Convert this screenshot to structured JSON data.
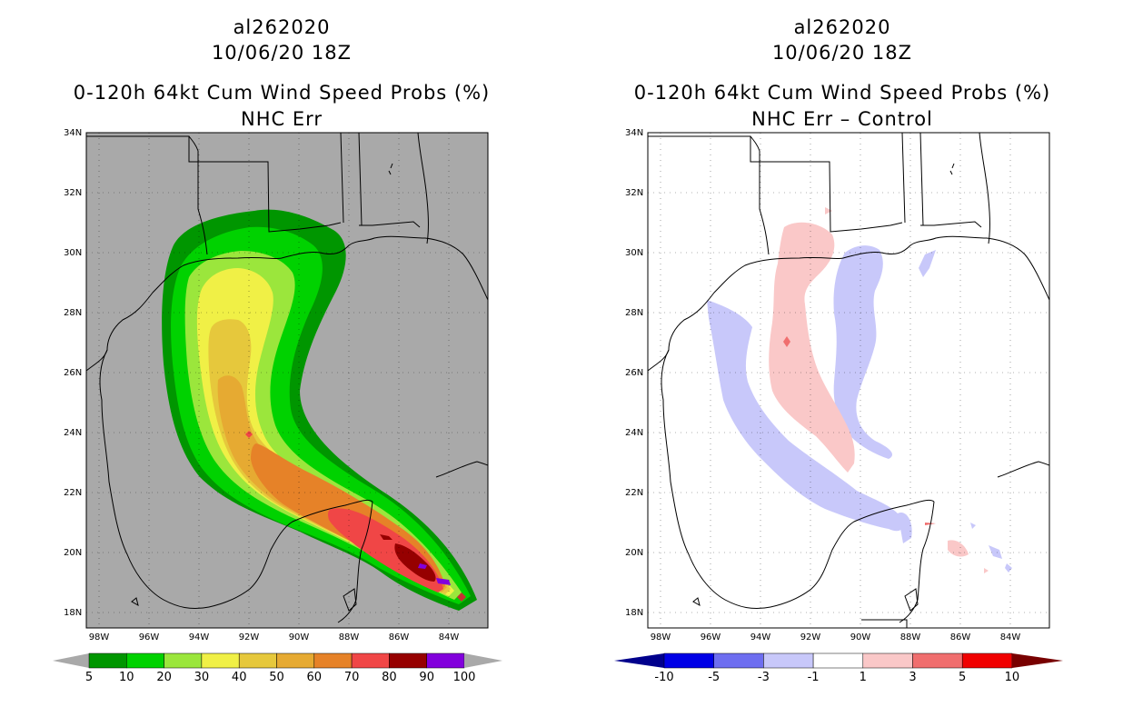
{
  "left": {
    "storm_id": "al262020",
    "datetime": "10/06/20 18Z",
    "title": "0-120h 64kt Cum Wind Speed Probs (%)",
    "subtitle": "NHC Err",
    "background": "#a9a9a9",
    "colorbar_labels": [
      "5",
      "10",
      "20",
      "30",
      "40",
      "50",
      "60",
      "70",
      "80",
      "90",
      "100"
    ],
    "colorbar_colors": [
      "#009600",
      "#00d200",
      "#9be63c",
      "#f0f046",
      "#e6c83c",
      "#e6aa32",
      "#e68228",
      "#f04646",
      "#960000",
      "#8200dc"
    ]
  },
  "right": {
    "storm_id": "al262020",
    "datetime": "10/06/20 18Z",
    "title": "0-120h 64kt Cum Wind Speed Probs (%)",
    "subtitle": "NHC Err – Control",
    "background": "#ffffff",
    "colorbar_labels": [
      "-10",
      "-5",
      "-3",
      "-1",
      "1",
      "3",
      "5",
      "10"
    ],
    "colorbar_colors": [
      "#0000e6",
      "#6e6ef0",
      "#c8c8fa",
      "#ffffff",
      "#fac8c8",
      "#f06e6e",
      "#f00000"
    ]
  },
  "axes": {
    "lat_labels": [
      "34N",
      "32N",
      "30N",
      "28N",
      "26N",
      "24N",
      "22N",
      "20N",
      "18N"
    ],
    "lon_labels": [
      "98W",
      "96W",
      "94W",
      "92W",
      "90W",
      "88W",
      "86W",
      "84W"
    ]
  }
}
